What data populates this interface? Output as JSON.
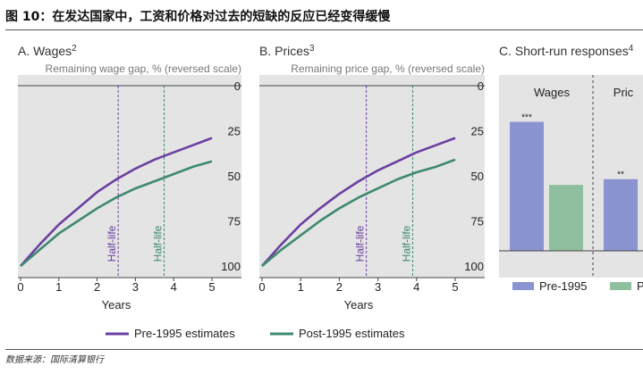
{
  "figure_title": "图 10：在发达国家中，工资和价格对过去的短缺的反应已经变得缓慢",
  "source": "数据来源：国际清算银行",
  "colors": {
    "pre1995": "#6b3fa0",
    "post1995": "#3d8a6e",
    "panel_bg": "#e4e4e4",
    "bar_pre": "#8b94d0",
    "bar_post": "#8fbf9f"
  },
  "legend": {
    "pre_label": "Pre-1995 estimates",
    "post_label": "Post-1995 estimates"
  },
  "panels": {
    "a": {
      "letter": "A. Wages",
      "sup": "2"
    },
    "b": {
      "letter": "B. Prices",
      "sup": "3"
    },
    "c": {
      "letter": "C. Short-run responses",
      "sup": "4"
    }
  },
  "chart_data": [
    {
      "type": "line",
      "panel": "A",
      "title": "A. Wages2",
      "ylabel": "Remaining wage gap, % (reversed scale)",
      "xlabel": "Years",
      "xlim": [
        0,
        5
      ],
      "ylim": [
        0,
        100
      ],
      "y_reversed": true,
      "xticks": [
        0,
        1,
        2,
        3,
        4,
        5
      ],
      "yticks": [
        0,
        25,
        50,
        75,
        100
      ],
      "x": [
        0,
        0.5,
        1,
        1.5,
        2,
        2.5,
        3,
        3.5,
        4,
        4.5,
        5
      ],
      "series": [
        {
          "name": "Pre-1995 estimates",
          "values": [
            100,
            88,
            77,
            68,
            59,
            52,
            46,
            41,
            37,
            33,
            29
          ]
        },
        {
          "name": "Post-1995 estimates",
          "values": [
            100,
            91,
            82,
            75,
            68,
            62,
            57,
            53,
            49,
            45,
            42
          ]
        }
      ],
      "half_life": [
        {
          "x": 2.55,
          "label": "Half-life",
          "series": "Pre-1995 estimates"
        },
        {
          "x": 3.75,
          "label": "Half-life",
          "series": "Post-1995 estimates"
        }
      ]
    },
    {
      "type": "line",
      "panel": "B",
      "title": "B. Prices3",
      "ylabel": "Remaining price gap, % (reversed scale)",
      "xlabel": "Years",
      "xlim": [
        0,
        5
      ],
      "ylim": [
        0,
        100
      ],
      "y_reversed": true,
      "xticks": [
        0,
        1,
        2,
        3,
        4,
        5
      ],
      "yticks": [
        0,
        25,
        50,
        75,
        100
      ],
      "x": [
        0,
        0.5,
        1,
        1.5,
        2,
        2.5,
        3,
        3.5,
        4,
        4.5,
        5
      ],
      "series": [
        {
          "name": "Pre-1995 estimates",
          "values": [
            100,
            88,
            77,
            68,
            60,
            53,
            47,
            42,
            37,
            33,
            29
          ]
        },
        {
          "name": "Post-1995 estimates",
          "values": [
            100,
            91,
            83,
            75,
            68,
            62,
            57,
            52,
            48,
            45,
            41
          ]
        }
      ],
      "half_life": [
        {
          "x": 2.7,
          "label": "Half-life",
          "series": "Pre-1995 estimates"
        },
        {
          "x": 3.9,
          "label": "Half-life",
          "series": "Post-1995 estimates"
        }
      ]
    },
    {
      "type": "bar",
      "panel": "C",
      "title": "C. Short-run responses4",
      "groups": [
        {
          "label": "Wages",
          "bars": [
            {
              "series": "Pre-1995",
              "value": 0.45,
              "significance": "***"
            },
            {
              "series": "Post-1995",
              "value": 0.23,
              "significance": ""
            }
          ]
        },
        {
          "label": "Pric",
          "bars": [
            {
              "series": "Pre-1995",
              "value": 0.25,
              "significance": "**"
            }
          ]
        }
      ],
      "legend": [
        "Pre-1995",
        "P"
      ],
      "ylim": [
        0,
        0.5
      ]
    }
  ]
}
